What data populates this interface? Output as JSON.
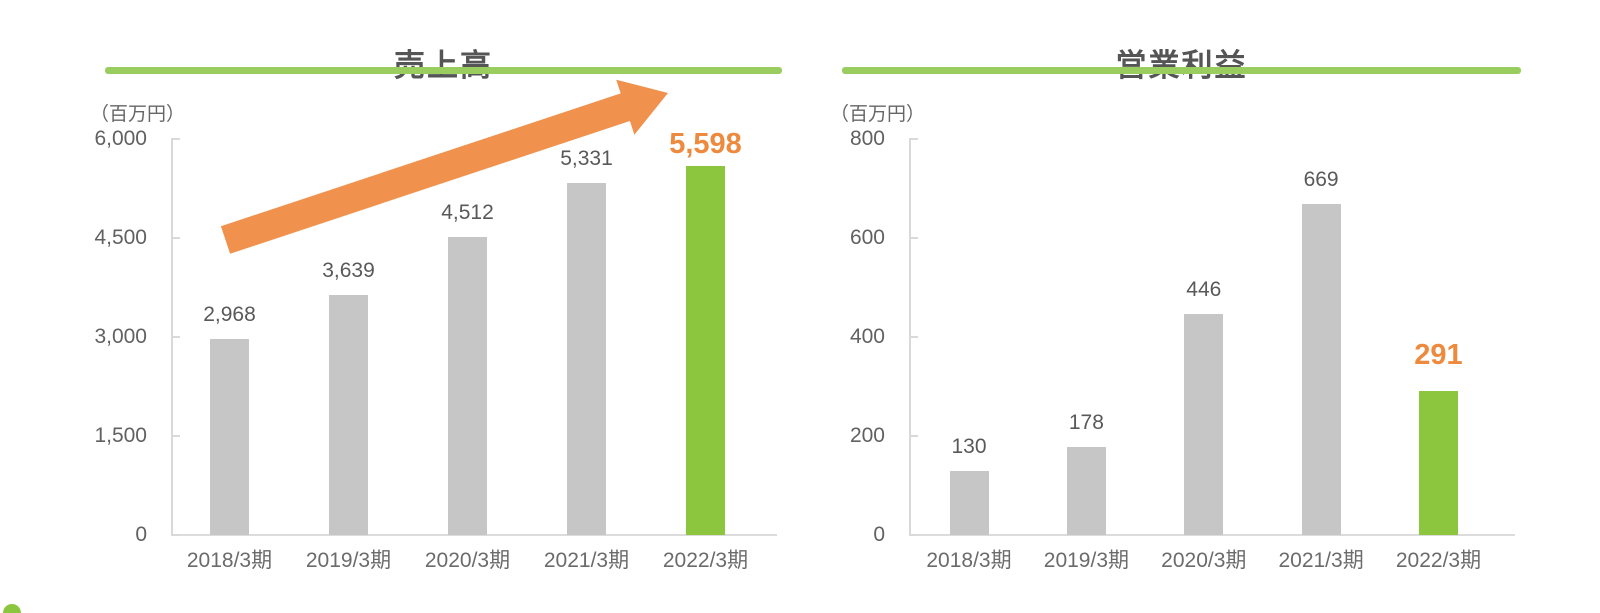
{
  "page": {
    "background": "#FFFFFF"
  },
  "decorations": {
    "growth_arrow_color": "#F0924D",
    "title_underline_color": "#99CD60",
    "corner_dot_color": "#8CC63E"
  },
  "chart_data": [
    {
      "type": "bar",
      "title": "売上高",
      "unit": "（百万円）",
      "categories": [
        "2018/3期",
        "2019/3期",
        "2020/3期",
        "2021/3期",
        "2022/3期"
      ],
      "values": [
        2968,
        3639,
        4512,
        5331,
        5598
      ],
      "value_labels": [
        "2,968",
        "3,639",
        "4,512",
        "5,331",
        "5,598"
      ],
      "ylim": [
        0,
        6000
      ],
      "ytick_values": [
        6000,
        4500,
        3000,
        1500,
        0
      ],
      "ytick_labels": [
        "6,000",
        "4,500",
        "3,000",
        "1,500",
        "0"
      ],
      "grid": false,
      "legend": "none",
      "highlight_index": 4,
      "bar_color": "#C6C6C6",
      "highlight_bar_color": "#8CC63E",
      "value_label_color": "#595959",
      "highlight_value_label_color": "#ED8A3E"
    },
    {
      "type": "bar",
      "title": "営業利益",
      "unit": "（百万円）",
      "categories": [
        "2018/3期",
        "2019/3期",
        "2020/3期",
        "2021/3期",
        "2022/3期"
      ],
      "values": [
        130,
        178,
        446,
        669,
        291
      ],
      "value_labels": [
        "130",
        "178",
        "446",
        "669",
        "291"
      ],
      "ylim": [
        0,
        800
      ],
      "ytick_values": [
        800,
        600,
        400,
        200,
        0
      ],
      "ytick_labels": [
        "800",
        "600",
        "400",
        "200",
        "0"
      ],
      "grid": false,
      "legend": "none",
      "highlight_index": 4,
      "bar_color": "#C6C6C6",
      "highlight_bar_color": "#8CC63E",
      "value_label_color": "#595959",
      "highlight_value_label_color": "#ED8A3E"
    }
  ]
}
